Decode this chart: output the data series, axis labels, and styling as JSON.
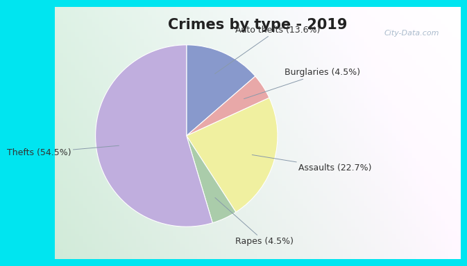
{
  "title": "Crimes by type - 2019",
  "label_texts": [
    "Thefts (54.5%)",
    "Auto thefts (13.6%)",
    "Burglaries (4.5%)",
    "Assaults (22.7%)",
    "Rapes (4.5%)"
  ],
  "values": [
    54.5,
    13.6,
    4.5,
    22.7,
    4.5
  ],
  "colors": [
    "#c0aede",
    "#8899cc",
    "#e8a8a8",
    "#f0f0a0",
    "#aaccaa"
  ],
  "bg_top": "#00e5f0",
  "bg_inner_left": "#c8e8d0",
  "bg_inner_right": "#e8f0f0",
  "title_fontsize": 15,
  "label_fontsize": 9,
  "watermark": "City-Data.com",
  "wedge_order": [
    1,
    2,
    3,
    4,
    0
  ],
  "startangle": 90
}
